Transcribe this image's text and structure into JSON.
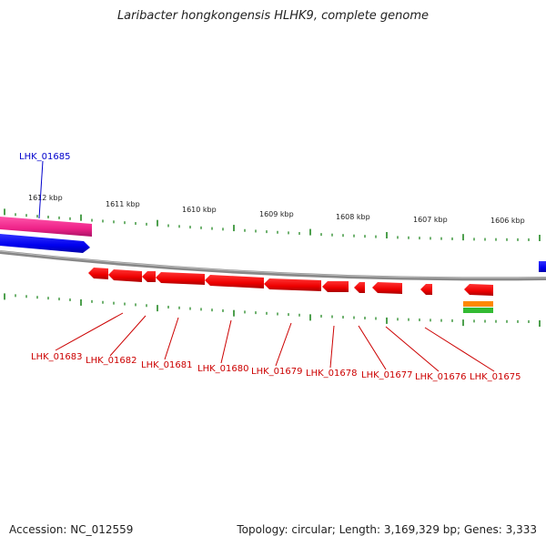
{
  "title": "Laribacter hongkongensis HLHK9, complete genome",
  "footer": {
    "accession": "Accession: NC_012559",
    "summary": "Topology: circular; Length: 3,169,329 bp; Genes: 3,333"
  },
  "scale_labels": [
    "1612 kbp",
    "1611 kbp",
    "1610 kbp",
    "1609 kbp",
    "1608 kbp",
    "1607 kbp",
    "1606 kbp"
  ],
  "genes_forward": [
    {
      "label": "LHK_01685",
      "color": "#0000cc"
    }
  ],
  "genes_reverse": [
    {
      "label": "LHK_01683",
      "color": "#cc0000"
    },
    {
      "label": "LHK_01682",
      "color": "#cc0000"
    },
    {
      "label": "LHK_01681",
      "color": "#cc0000"
    },
    {
      "label": "LHK_01680",
      "color": "#cc0000"
    },
    {
      "label": "LHK_01679",
      "color": "#cc0000"
    },
    {
      "label": "LHK_01678",
      "color": "#cc0000"
    },
    {
      "label": "LHK_01677",
      "color": "#cc0000"
    },
    {
      "label": "LHK_01676",
      "color": "#cc0000"
    },
    {
      "label": "LHK_01675",
      "color": "#cc0000"
    }
  ],
  "colors": {
    "forward_cds": "#0000ee",
    "reverse_cds": "#ee0000",
    "rna_feature": "#ee2288",
    "backbone": "#888888",
    "ticks": "#228822",
    "orange_feature": "#ff8800",
    "green_feature": "#33bb33"
  }
}
